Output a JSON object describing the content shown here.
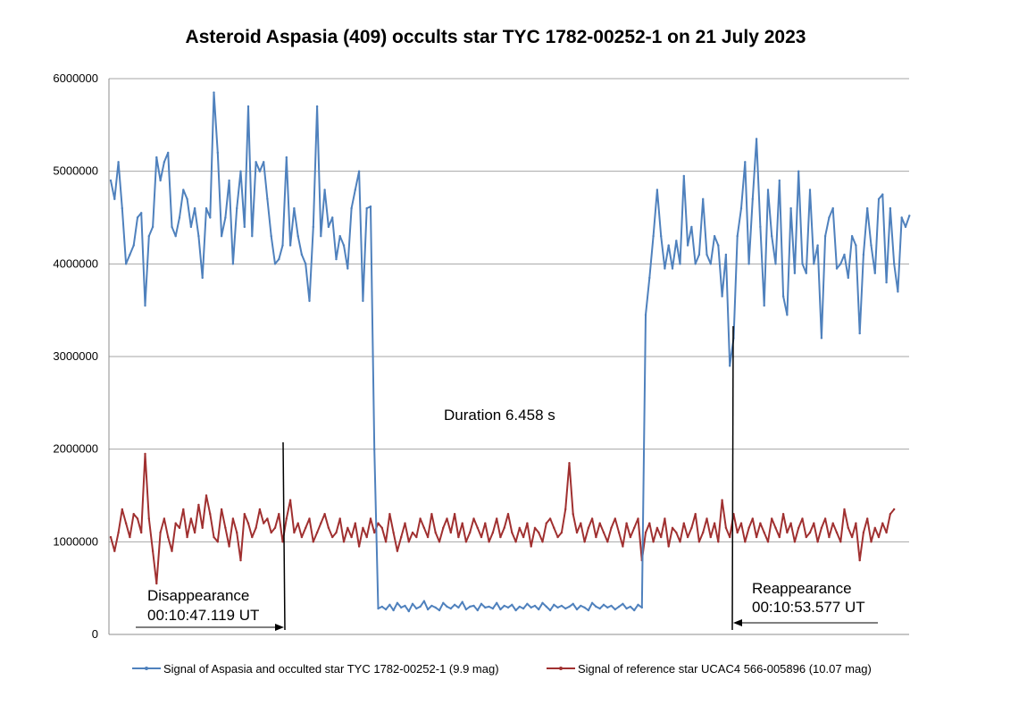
{
  "chart_data": {
    "type": "line",
    "title": "Asteroid Aspasia (409) occults star TYC 1782-00252-1 on 21 July 2023",
    "xlabel": "",
    "ylabel": "",
    "ylim": [
      0,
      6000000
    ],
    "yticks": [
      "0",
      "1000000",
      "2000000",
      "3000000",
      "4000000",
      "5000000",
      "6000000"
    ],
    "grid": true,
    "legend_position": "bottom",
    "series": [
      {
        "name": "Signal of Aspasia and occulted star TYC 1782-00252-1 (9.9 mag)",
        "color": "#4f81bd",
        "segments": [
          {
            "start_frame": 0,
            "values": [
              4900000,
              4700000,
              5100000,
              4600000,
              4000000,
              4100000,
              4200000,
              4500000,
              4550000,
              3550000,
              4300000,
              4400000,
              5150000,
              4900000,
              5100000,
              5200000,
              4400000,
              4300000,
              4500000,
              4800000,
              4700000,
              4400000,
              4600000,
              4300000,
              3850000,
              4600000,
              4500000,
              5850000,
              5200000,
              4300000,
              4500000,
              4900000,
              4000000,
              4600000,
              5000000,
              4400000,
              5700000,
              4300000,
              5100000,
              5000000,
              5100000,
              4700000,
              4300000,
              4000000,
              4050000,
              4200000,
              5150000,
              4200000,
              4600000,
              4300000,
              4100000,
              4000000,
              3600000,
              4400000,
              5700000,
              4300000,
              4800000,
              4400000,
              4500000,
              4050000,
              4300000,
              4200000,
              3950000,
              4600000,
              4800000,
              5000000,
              3600000,
              4600000,
              4620000,
              2000000
            ]
          },
          {
            "start_frame": 70,
            "values": [
              280000,
              300000,
              270000,
              320000,
              260000,
              340000,
              290000,
              310000,
              250000,
              330000,
              280000,
              300000,
              360000,
              270000,
              310000,
              290000,
              260000,
              340000,
              300000,
              280000,
              320000,
              290000,
              350000,
              270000,
              300000,
              310000,
              260000,
              330000,
              290000,
              300000,
              280000,
              340000,
              270000,
              310000,
              290000,
              320000,
              260000,
              300000,
              280000,
              330000,
              290000,
              310000,
              270000,
              340000,
              300000,
              260000,
              320000,
              290000,
              310000,
              280000,
              300000,
              330000,
              270000,
              310000,
              290000,
              260000,
              340000,
              300000,
              280000,
              320000,
              290000,
              310000,
              270000,
              300000,
              330000,
              280000,
              300000,
              260000,
              320000,
              290000
            ]
          },
          {
            "start_frame": 140,
            "values": [
              3450000,
              3850000,
              4300000,
              4800000,
              4300000,
              3950000,
              4200000,
              3950000,
              4250000,
              4000000,
              4950000,
              4200000,
              4400000,
              4000000,
              4100000,
              4700000,
              4100000,
              4000000,
              4300000,
              4200000,
              3650000,
              4100000,
              2900000,
              3200000,
              4300000,
              4600000,
              5100000,
              4000000,
              4700000,
              5350000,
              4400000,
              3550000,
              4800000,
              4300000,
              4000000,
              4900000,
              3650000,
              3450000,
              4600000,
              3900000,
              5000000,
              4000000,
              3900000,
              4800000,
              4000000,
              4200000,
              3200000,
              4300000,
              4500000,
              4600000,
              3950000,
              4000000,
              4100000,
              3850000,
              4300000,
              4200000,
              3250000,
              4100000,
              4600000,
              4200000,
              3900000,
              4700000,
              4750000,
              3800000,
              4600000,
              4000000,
              3700000,
              4500000,
              4400000,
              4520000
            ]
          }
        ]
      },
      {
        "name": "Signal of reference star UCAC4 566-005896 (10.07 mag)",
        "color": "#a03030",
        "start_frame": 0,
        "values": [
          1050000,
          900000,
          1100000,
          1350000,
          1200000,
          1050000,
          1300000,
          1250000,
          1100000,
          1950000,
          1250000,
          900000,
          550000,
          1100000,
          1250000,
          1050000,
          900000,
          1200000,
          1150000,
          1350000,
          1050000,
          1250000,
          1100000,
          1400000,
          1150000,
          1500000,
          1300000,
          1050000,
          1000000,
          1350000,
          1150000,
          950000,
          1250000,
          1100000,
          800000,
          1300000,
          1200000,
          1050000,
          1150000,
          1350000,
          1200000,
          1250000,
          1100000,
          1150000,
          1300000,
          1000000,
          1250000,
          1450000,
          1100000,
          1200000,
          1050000,
          1150000,
          1250000,
          1000000,
          1100000,
          1200000,
          1300000,
          1150000,
          1050000,
          1100000,
          1250000,
          1000000,
          1150000,
          1050000,
          1200000,
          950000,
          1150000,
          1050000,
          1250000,
          1100000,
          1200000,
          1150000,
          1000000,
          1300000,
          1100000,
          900000,
          1050000,
          1200000,
          1000000,
          1100000,
          1050000,
          1250000,
          1150000,
          1050000,
          1300000,
          1100000,
          1000000,
          1150000,
          1250000,
          1100000,
          1300000,
          1050000,
          1200000,
          1000000,
          1100000,
          1250000,
          1150000,
          1050000,
          1200000,
          1000000,
          1100000,
          1250000,
          1050000,
          1150000,
          1300000,
          1100000,
          1000000,
          1150000,
          1050000,
          1200000,
          950000,
          1150000,
          1100000,
          1000000,
          1200000,
          1250000,
          1150000,
          1050000,
          1100000,
          1350000,
          1850000,
          1300000,
          1100000,
          1200000,
          1000000,
          1150000,
          1250000,
          1050000,
          1200000,
          1100000,
          1000000,
          1150000,
          1250000,
          1100000,
          950000,
          1200000,
          1050000,
          1150000,
          1250000,
          800000,
          1100000,
          1200000,
          1000000,
          1150000,
          1050000,
          1250000,
          950000,
          1150000,
          1100000,
          1000000,
          1200000,
          1050000,
          1150000,
          1300000,
          1000000,
          1100000,
          1250000,
          1050000,
          1200000,
          1000000,
          1450000,
          1150000,
          1050000,
          1300000,
          1100000,
          1200000,
          1000000,
          1150000,
          1250000,
          1050000,
          1200000,
          1100000,
          1000000,
          1250000,
          1150000,
          1050000,
          1300000,
          1100000,
          1200000,
          1000000,
          1150000,
          1250000,
          1050000,
          1100000,
          1200000,
          1000000,
          1150000,
          1250000,
          1050000,
          1200000,
          1100000,
          1000000,
          1350000,
          1150000,
          1050000,
          1200000,
          800000,
          1100000,
          1250000,
          1000000,
          1150000,
          1050000,
          1200000,
          1100000,
          1300000,
          1350000
        ]
      }
    ]
  },
  "annotations": {
    "disappearance_label": "Disappearance",
    "disappearance_time": "00:10:47.119 UT",
    "reappearance_label": "Reappearance",
    "reappearance_time": "00:10:53.577 UT",
    "duration": "Duration 6.458 s"
  },
  "colors": {
    "gridline": "#a6a6a6",
    "axis": "#8c8c8c",
    "annotation_line": "#000000"
  }
}
